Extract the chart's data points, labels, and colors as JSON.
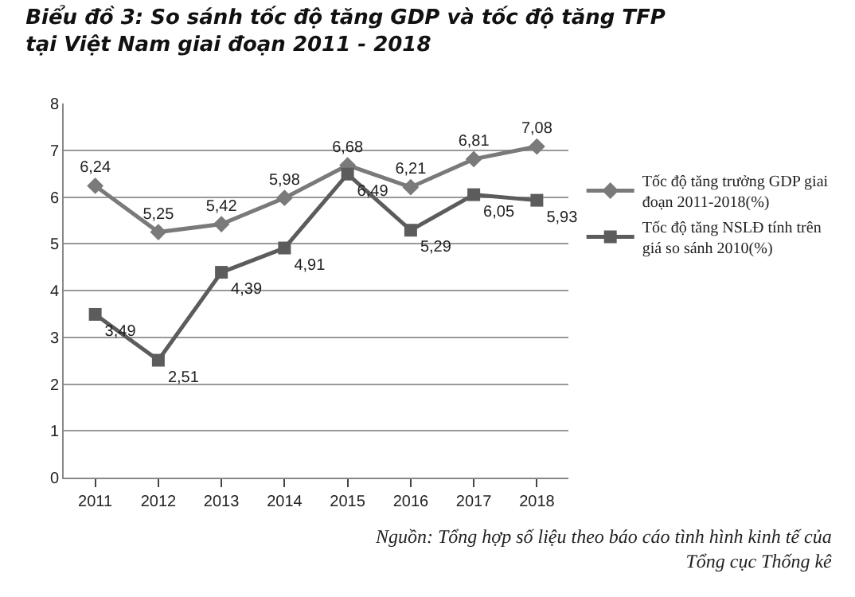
{
  "chart_data": {
    "type": "line",
    "title": "Biểu đồ 3: So sánh tốc độ tăng GDP và tốc độ tăng TFP tại Việt Nam giai đoạn 2011 - 2018",
    "categories": [
      "2011",
      "2012",
      "2013",
      "2014",
      "2015",
      "2016",
      "2017",
      "2018"
    ],
    "series": [
      {
        "name": "Tốc độ tăng trưởng GDP giai đoạn 2011-2018(%)",
        "color": "#7a7a7a",
        "marker": "diamond",
        "values": [
          6.24,
          5.25,
          5.42,
          5.98,
          6.68,
          6.21,
          6.81,
          7.08
        ],
        "value_labels": [
          "6,24",
          "5,25",
          "5,42",
          "5,98",
          "6,68",
          "6,21",
          "6,81",
          "7,08"
        ]
      },
      {
        "name": "Tốc độ tăng NSLĐ tính trên giá so sánh 2010(%)",
        "color": "#5c5c5c",
        "marker": "square",
        "values": [
          3.49,
          2.51,
          4.39,
          4.91,
          6.49,
          5.29,
          6.05,
          5.93
        ],
        "value_labels": [
          "3,49",
          "2,51",
          "4,39",
          "4,91",
          "6,49",
          "5,29",
          "6,05",
          "5,93"
        ]
      }
    ],
    "ylim": [
      0,
      8
    ],
    "yticks": [
      0,
      1,
      2,
      3,
      4,
      5,
      6,
      7,
      8
    ],
    "grid": "y",
    "legend": "right",
    "annotations": [
      "Nguồn: Tổng hợp số liệu theo báo cáo tình hình kinh tế của Tổng cục Thống kê"
    ]
  }
}
